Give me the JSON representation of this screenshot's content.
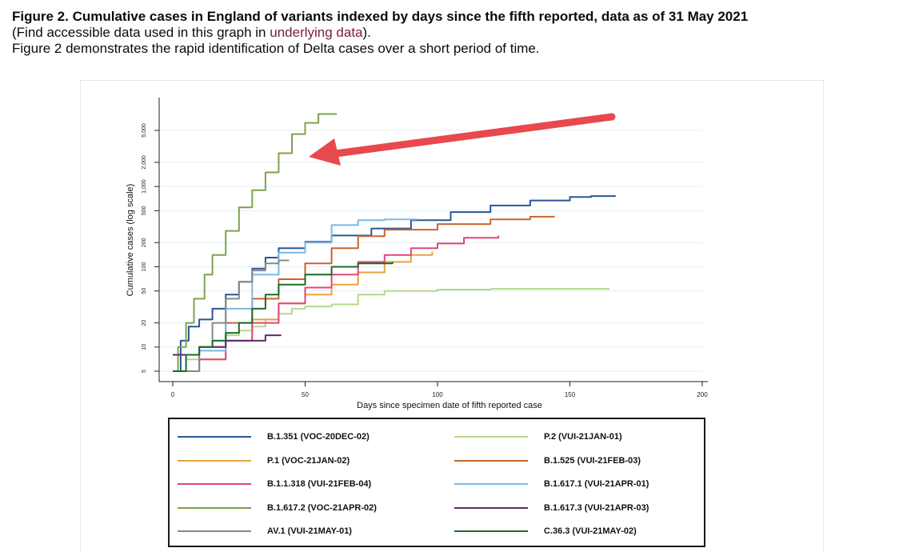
{
  "caption": {
    "title": "Figure 2. Cumulative cases in England of variants indexed by days since the fifth reported, data as of 31 May 2021",
    "access_prefix": "(Find accessible data used in this graph in ",
    "access_link": "underlying data",
    "access_suffix": ").",
    "description": "Figure 2 demonstrates the rapid identification of Delta cases over a short period of time."
  },
  "chart_data": {
    "type": "line",
    "xlabel": "Days since specimen date of fifth reported case",
    "ylabel": "Cumulative cases (log scale)",
    "xlim": [
      0,
      200
    ],
    "ylim": [
      5,
      8000
    ],
    "y_scale": "log",
    "x_ticks": [
      0,
      50,
      100,
      150,
      200
    ],
    "y_ticks": [
      5,
      10,
      20,
      50,
      100,
      200,
      500,
      1000,
      2000,
      5000
    ],
    "y_tick_labels": [
      "5",
      "10",
      "20",
      "50",
      "100",
      "200",
      "500",
      "1,000",
      "2,000",
      "5,000"
    ],
    "grid": true,
    "legend_position": "bottom",
    "annotation": "red arrow pointing to the B.1.617.2 curve",
    "series": [
      {
        "name": "B.1.351 (VOC-20DEC-02)",
        "color": "#2b5597",
        "x": [
          0,
          3,
          6,
          10,
          15,
          20,
          25,
          30,
          35,
          40,
          50,
          60,
          75,
          90,
          105,
          120,
          135,
          150,
          158,
          167
        ],
        "y": [
          5,
          12,
          18,
          22,
          30,
          45,
          65,
          95,
          130,
          170,
          205,
          245,
          300,
          380,
          480,
          580,
          670,
          740,
          760,
          780
        ]
      },
      {
        "name": "P.2 (VUI-21JAN-01)",
        "color": "#b5d88a",
        "x": [
          0,
          5,
          10,
          15,
          20,
          25,
          30,
          35,
          40,
          45,
          50,
          60,
          65,
          70,
          80,
          100,
          120,
          140,
          165
        ],
        "y": [
          5,
          7,
          10,
          12,
          14,
          16,
          18,
          22,
          26,
          30,
          32,
          34,
          34,
          45,
          50,
          52,
          53,
          53,
          53
        ]
      },
      {
        "name": "P.1 (VOC-21JAN-02)",
        "color": "#e8a33f",
        "x": [
          0,
          10,
          20,
          30,
          40,
          50,
          60,
          70,
          80,
          90,
          98
        ],
        "y": [
          5,
          7,
          12,
          22,
          35,
          45,
          60,
          85,
          115,
          140,
          155
        ]
      },
      {
        "name": "B.1.525 (VUI-21FEB-03)",
        "color": "#c8652d",
        "x": [
          0,
          10,
          20,
          30,
          40,
          50,
          60,
          70,
          80,
          100,
          120,
          135,
          144
        ],
        "y": [
          5,
          10,
          20,
          40,
          70,
          110,
          170,
          240,
          290,
          340,
          390,
          420,
          430
        ]
      },
      {
        "name": "B.1.1.318 (VUI-21FEB-04)",
        "color": "#e0467a",
        "x": [
          0,
          10,
          20,
          30,
          40,
          50,
          60,
          70,
          80,
          90,
          100,
          110,
          123
        ],
        "y": [
          5,
          7,
          12,
          20,
          35,
          55,
          80,
          115,
          140,
          170,
          195,
          230,
          245
        ]
      },
      {
        "name": "B.1.617.1 (VUI-21APR-01)",
        "color": "#7ab8e8",
        "x": [
          0,
          10,
          20,
          30,
          40,
          50,
          60,
          70,
          80,
          92
        ],
        "y": [
          5,
          9,
          30,
          80,
          150,
          200,
          330,
          380,
          390,
          400
        ]
      },
      {
        "name": "B.1.617.2 (VOC-21APR-02)",
        "color": "#7ea34a",
        "x": [
          0,
          2,
          5,
          8,
          12,
          15,
          20,
          25,
          30,
          35,
          40,
          45,
          50,
          55,
          58,
          62
        ],
        "y": [
          5,
          10,
          20,
          40,
          80,
          140,
          280,
          550,
          900,
          1500,
          2600,
          4500,
          6200,
          8000,
          8000,
          8000
        ]
      },
      {
        "name": "B.1.617.3 (VUI-21APR-03)",
        "color": "#5c2a6e",
        "x": [
          0,
          5,
          10,
          20,
          30,
          35,
          41
        ],
        "y": [
          8,
          8,
          10,
          12,
          12,
          14,
          14
        ]
      },
      {
        "name": "AV.1 (VUI-21MAY-01)",
        "color": "#888888",
        "x": [
          0,
          5,
          10,
          15,
          20,
          25,
          30,
          35,
          40,
          44
        ],
        "y": [
          5,
          5,
          10,
          20,
          40,
          65,
          90,
          110,
          120,
          120
        ]
      },
      {
        "name": "C.36.3 (VUI-21MAY-02)",
        "color": "#1c6b2a",
        "x": [
          0,
          5,
          10,
          15,
          20,
          25,
          30,
          35,
          40,
          50,
          60,
          70,
          83
        ],
        "y": [
          5,
          8,
          10,
          12,
          15,
          20,
          30,
          45,
          60,
          80,
          100,
          110,
          115
        ]
      }
    ]
  }
}
